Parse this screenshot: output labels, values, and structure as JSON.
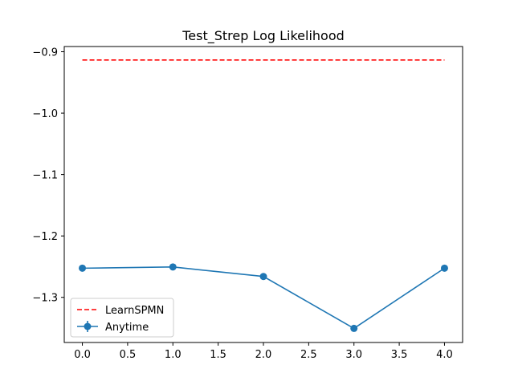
{
  "chart_data": {
    "type": "line",
    "title": "Test_Strep Log Likelihood",
    "xlabel": "",
    "ylabel": "",
    "xlim": [
      -0.2,
      4.2
    ],
    "ylim": [
      -1.3735,
      -0.8915
    ],
    "xticks": [
      0.0,
      0.5,
      1.0,
      1.5,
      2.0,
      2.5,
      3.0,
      3.5,
      4.0
    ],
    "xtick_labels": [
      "0.0",
      "0.5",
      "1.0",
      "1.5",
      "2.0",
      "2.5",
      "3.0",
      "3.5",
      "4.0"
    ],
    "yticks": [
      -0.9,
      -1.0,
      -1.1,
      -1.2,
      -1.3
    ],
    "ytick_labels": [
      "−0.9",
      "−1.0",
      "−1.1",
      "−1.2",
      "−1.3"
    ],
    "grid": false,
    "legend_position": "lower-left",
    "series": [
      {
        "name": "LearnSPMN",
        "style": "dashed",
        "color": "#ff0000",
        "x": [
          0,
          1,
          2,
          3,
          4
        ],
        "values": [
          -0.9135,
          -0.9135,
          -0.9135,
          -0.9135,
          -0.9135
        ]
      },
      {
        "name": "Anytime",
        "style": "solid-marker",
        "color": "#1f77b4",
        "x": [
          0,
          1,
          2,
          3,
          4
        ],
        "values": [
          -1.2525,
          -1.2505,
          -1.266,
          -1.3505,
          -1.2525
        ]
      }
    ]
  }
}
